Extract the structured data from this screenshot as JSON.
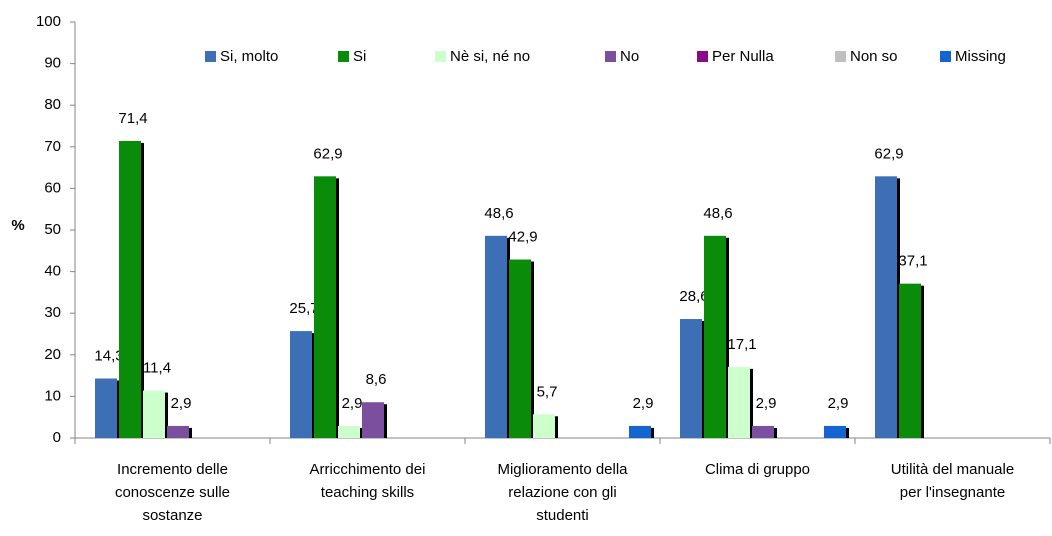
{
  "chart_data": {
    "type": "bar",
    "y_label": "%",
    "categories": [
      "Incremento delle conoscenze sulle sostanze",
      "Arricchimento dei teaching skills",
      "Miglioramento della relazione con gli studenti",
      "Clima di gruppo",
      "Utilità del manuale per l'insegnante"
    ],
    "series": [
      {
        "name": "Si, molto",
        "color": "#3d6fb6",
        "values": [
          14.3,
          25.7,
          48.6,
          28.6,
          62.9
        ],
        "value_labels": [
          "14,3",
          "25,7",
          "48,6",
          "28,6",
          "62,9"
        ]
      },
      {
        "name": "Si",
        "color": "#0a8c0a",
        "values": [
          71.4,
          62.9,
          42.9,
          48.6,
          37.1
        ],
        "value_labels": [
          "71,4",
          "62,9",
          "42,9",
          "48,6",
          "37,1"
        ]
      },
      {
        "name": "Nè si, né no",
        "color": "#ccffcc",
        "values": [
          11.4,
          2.9,
          5.7,
          17.1,
          null
        ],
        "value_labels": [
          "11,4",
          "2,9",
          "5,7",
          "17,1",
          null
        ]
      },
      {
        "name": "No",
        "color": "#7b4f9d",
        "values": [
          2.9,
          8.6,
          null,
          2.9,
          null
        ],
        "value_labels": [
          "2,9",
          "8,6",
          null,
          "2,9",
          null
        ]
      },
      {
        "name": "Per Nulla",
        "color": "#8b0a8b",
        "values": [
          null,
          null,
          null,
          null,
          null
        ]
      },
      {
        "name": "Non so",
        "color": "#c0c0c0",
        "values": [
          null,
          null,
          null,
          null,
          null
        ]
      },
      {
        "name": "Missing",
        "color": "#1565d0",
        "values": [
          null,
          null,
          2.9,
          2.9,
          null
        ],
        "value_labels": [
          null,
          null,
          "2,9",
          "2,9",
          null
        ]
      }
    ],
    "ylim": [
      0,
      100
    ],
    "yticks": [
      0,
      10,
      20,
      30,
      40,
      50,
      60,
      70,
      80,
      90,
      100
    ],
    "legend": "top"
  }
}
